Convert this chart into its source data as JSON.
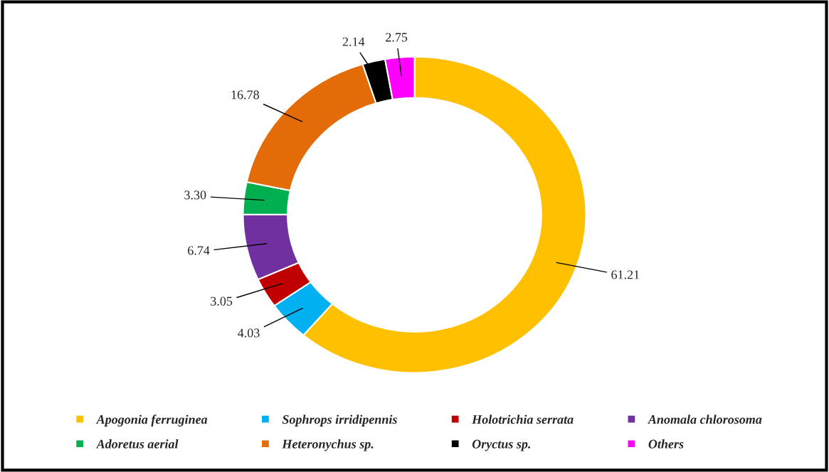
{
  "chart_data": {
    "type": "donut",
    "categories": [
      "Apogonia ferruginea",
      "Sophrops irridipennis",
      "Holotrichia serrata",
      "Anomala chlorosoma",
      "Adoretus aerial",
      "Heteronychus sp.",
      "Oryctus sp.",
      "Others"
    ],
    "values": [
      61.21,
      4.03,
      3.05,
      6.74,
      3.3,
      16.78,
      2.14,
      2.75
    ],
    "colors": [
      "#ffc000",
      "#00b0f0",
      "#c00000",
      "#7030a0",
      "#00b050",
      "#e36c09",
      "#000000",
      "#ff00ff"
    ],
    "value_labels": [
      "61.21",
      "4.03",
      "3.05",
      "6.74",
      "3.30",
      "16.78",
      "2.14",
      "2.75"
    ],
    "legend": "bottom"
  }
}
